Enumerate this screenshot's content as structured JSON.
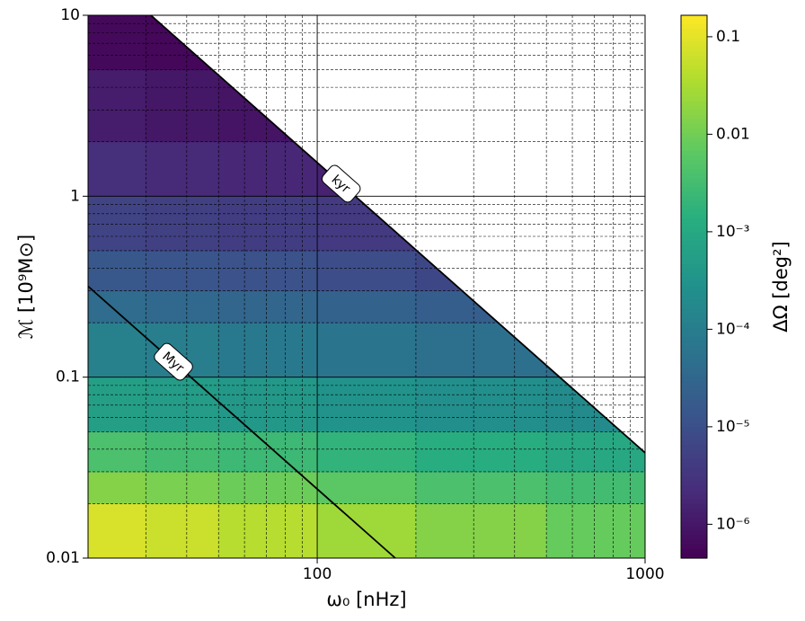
{
  "chart_data": {
    "type": "contourf",
    "xlabel": "ω₀ [nHz]",
    "ylabel": "ℳ [10⁹M⊙]",
    "colorbar_label": "ΔΩ [deg²]",
    "xscale": "log",
    "yscale": "log",
    "zscale": "log",
    "xlim": [
      20,
      1000
    ],
    "ylim": [
      0.01,
      10
    ],
    "xticks": [
      100,
      1000
    ],
    "yticks": [
      0.01,
      0.1,
      1,
      10
    ],
    "grid": true,
    "colormap": "viridis",
    "zlim": [
      4.5e-07,
      0.166
    ],
    "zticks": [
      0.1,
      0.01,
      {
        "value": 0.001,
        "label": "10⁻³"
      },
      {
        "value": 0.0001,
        "label": "10⁻⁴"
      },
      {
        "value": 1e-05,
        "label": "10⁻⁵"
      },
      {
        "value": 1e-06,
        "label": "10⁻⁶"
      }
    ],
    "x_bins": [
      20,
      30,
      50,
      100,
      200,
      500,
      1000
    ],
    "y_bins": [
      0.01,
      0.02,
      0.03,
      0.05,
      0.1,
      0.2,
      0.3,
      0.5,
      1,
      2,
      5,
      10
    ],
    "z": [
      [
        0.08,
        0.06,
        0.04,
        0.025,
        0.015,
        0.008
      ],
      [
        0.015,
        0.012,
        0.009,
        0.006,
        0.004,
        0.003
      ],
      [
        0.004,
        0.003,
        0.0025,
        0.0018,
        0.0013,
        0.001
      ],
      [
        0.0006,
        0.0005,
        0.0004,
        0.0003,
        0.00025,
        0.0002
      ],
      [
        0.00012,
        0.0001,
        8e-05,
        6e-05,
        5e-05,
        4e-05
      ],
      [
        4e-05,
        3.5e-05,
        3e-05,
        2.5e-05,
        2e-05,
        1.5e-05
      ],
      [
        1.5e-05,
        1.3e-05,
        1.1e-05,
        9e-06,
        7e-06,
        6e-06
      ],
      [
        6e-06,
        5e-06,
        4.5e-06,
        4e-06,
        3.5e-06,
        3e-06
      ],
      [
        2.5e-06,
        2e-06,
        1.8e-06,
        1.5e-06,
        1.3e-06,
        1.2e-06
      ],
      [
        1.2e-06,
        1e-06,
        9e-07,
        8e-07,
        7e-07,
        6e-07
      ],
      [
        6e-07,
        5.5e-07,
        5e-07,
        5e-07,
        5e-07,
        5e-07
      ]
    ],
    "lines": [
      {
        "name": "kyr",
        "color": "#000000",
        "x": [
          31.1,
          1000
        ],
        "y": [
          10,
          0.0382
        ]
      },
      {
        "name": "Myr",
        "color": "#000000",
        "x": [
          20,
          173
        ],
        "y": [
          0.318,
          0.01
        ]
      }
    ]
  }
}
